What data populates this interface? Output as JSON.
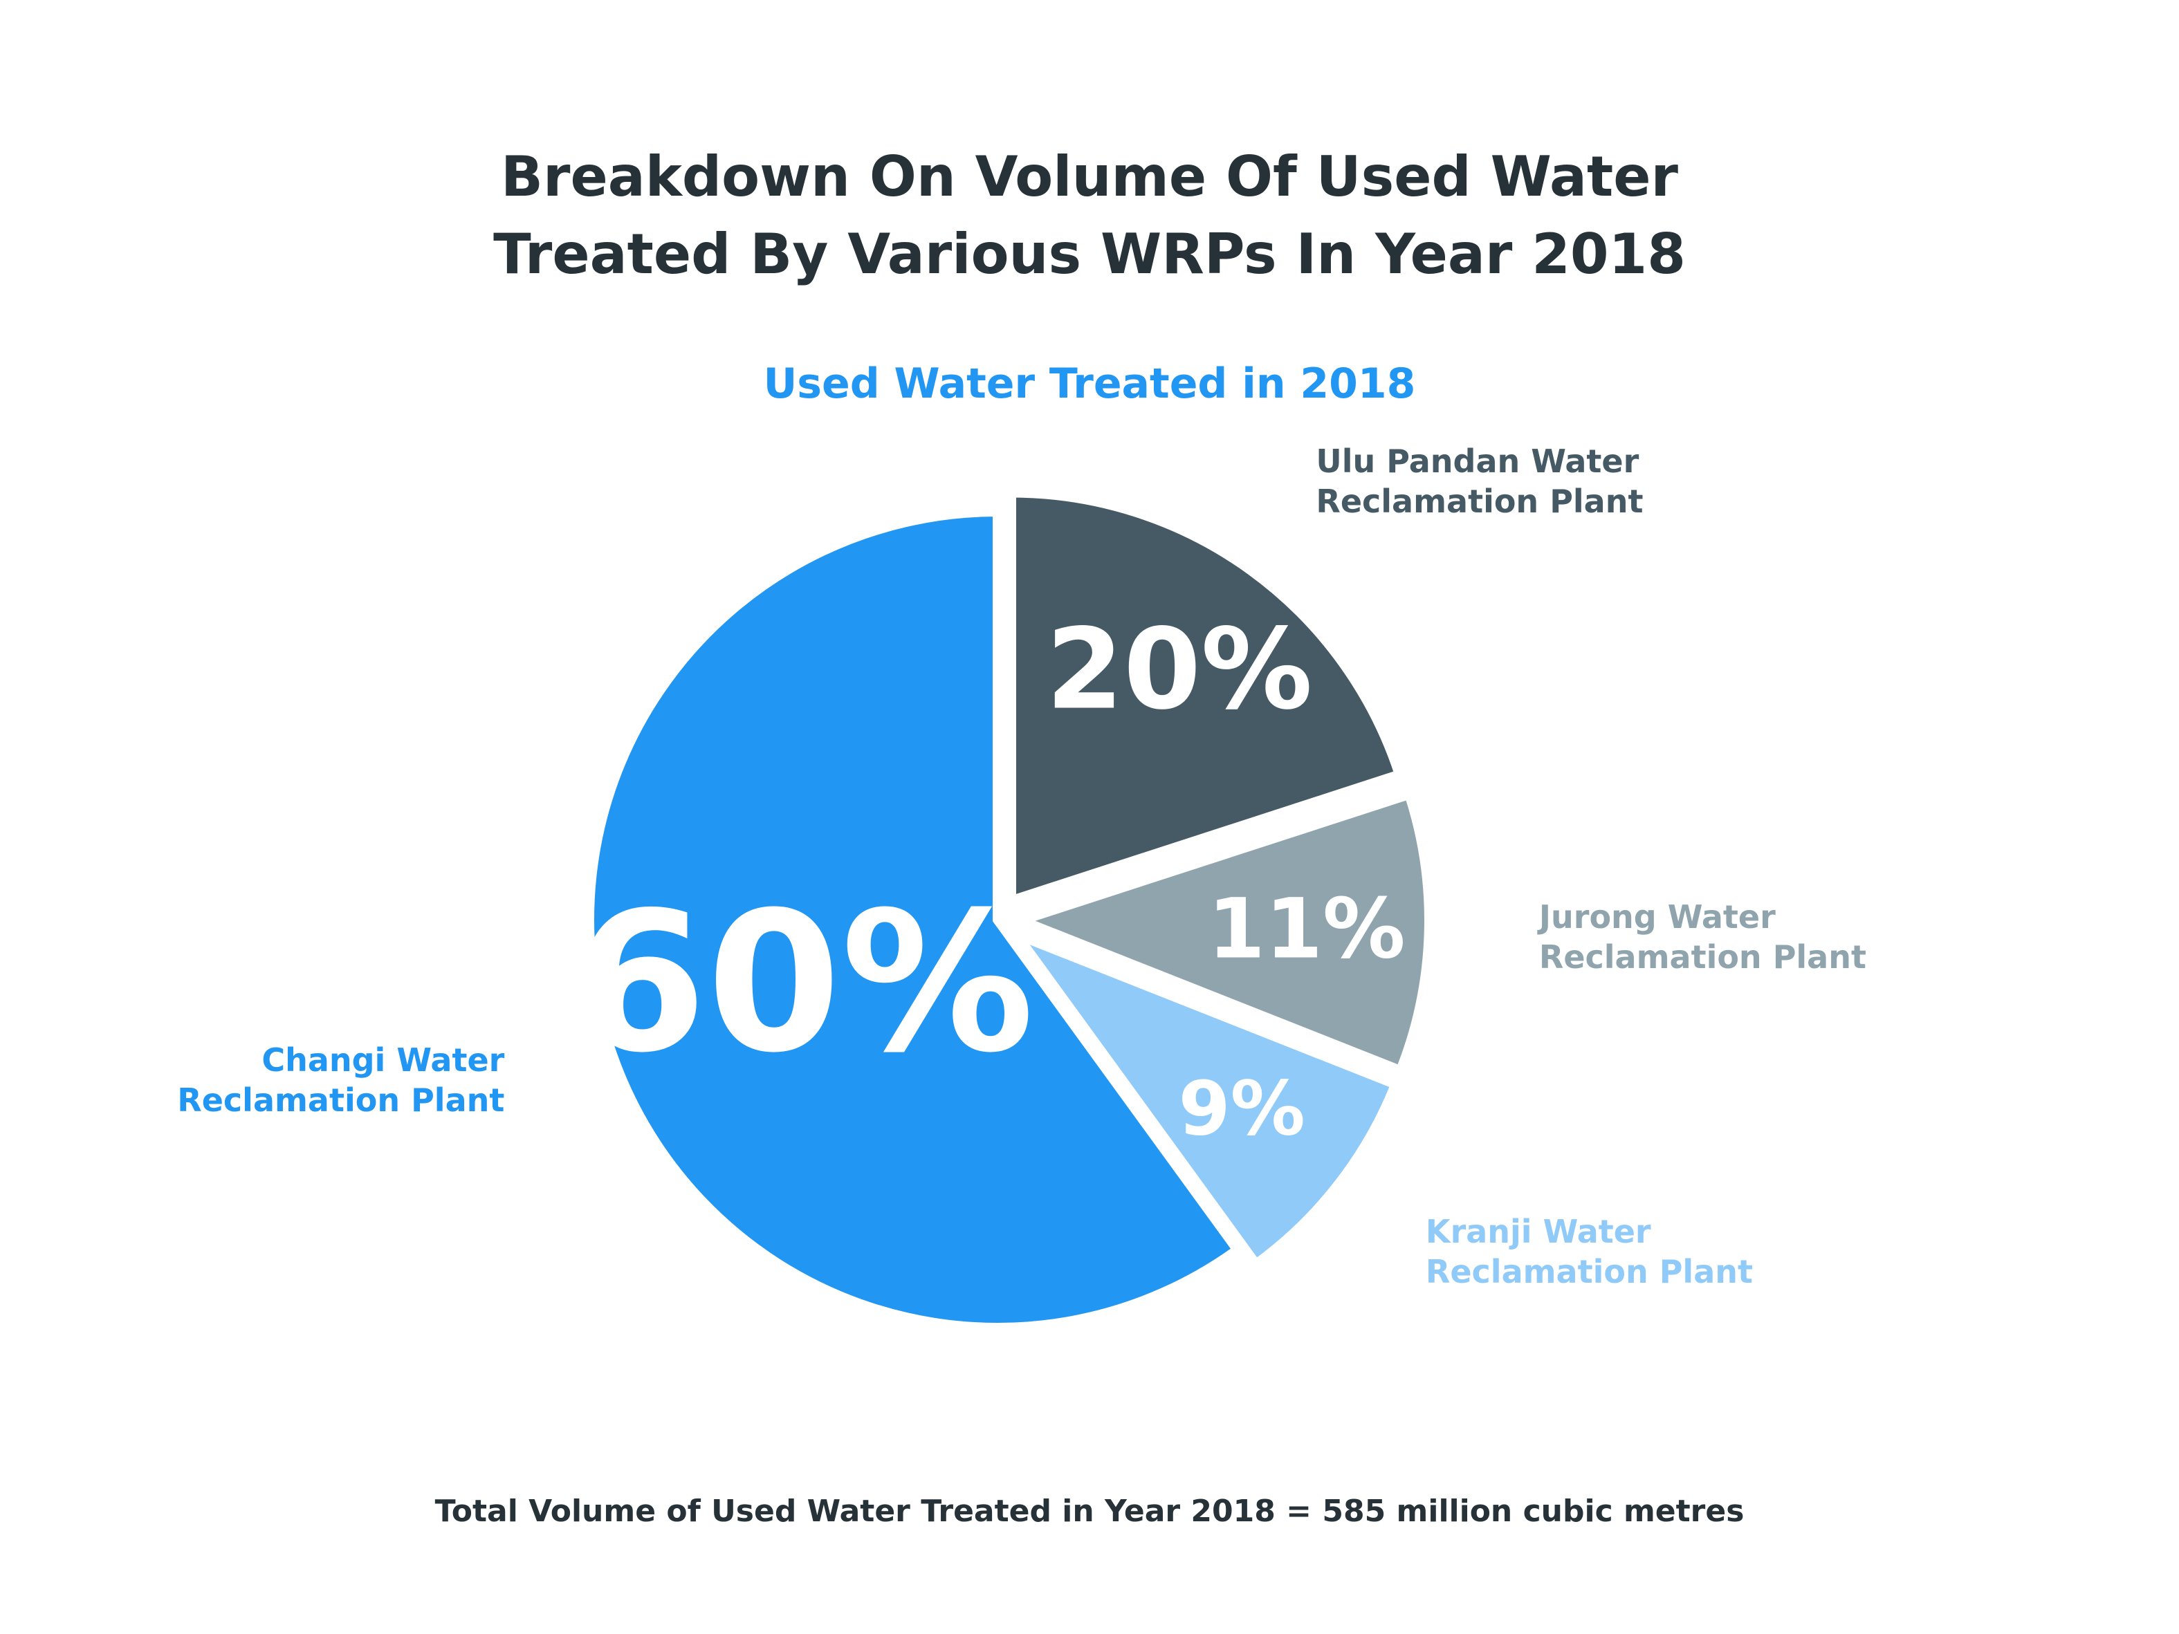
{
  "chart_data": {
    "type": "pie",
    "title": "Breakdown On Volume Of Used Water Treated By Various WRPs In Year 2018",
    "subtitle": "Used Water Treated in 2018",
    "categories": [
      "Ulu Pandan Water Reclamation Plant",
      "Jurong Water Reclamation Plant",
      "Kranji Water Reclamation Plant",
      "Changi Water Reclamation Plant"
    ],
    "values": [
      20,
      11,
      9,
      60
    ],
    "value_labels": [
      "20%",
      "11%",
      "9%",
      "60%"
    ],
    "colors": [
      "#455a64",
      "#90a4ae",
      "#90caf9",
      "#2196f3"
    ],
    "note": "Total Volume of Used Water Treated in Year 2018 = 585 million cubic metres"
  }
}
